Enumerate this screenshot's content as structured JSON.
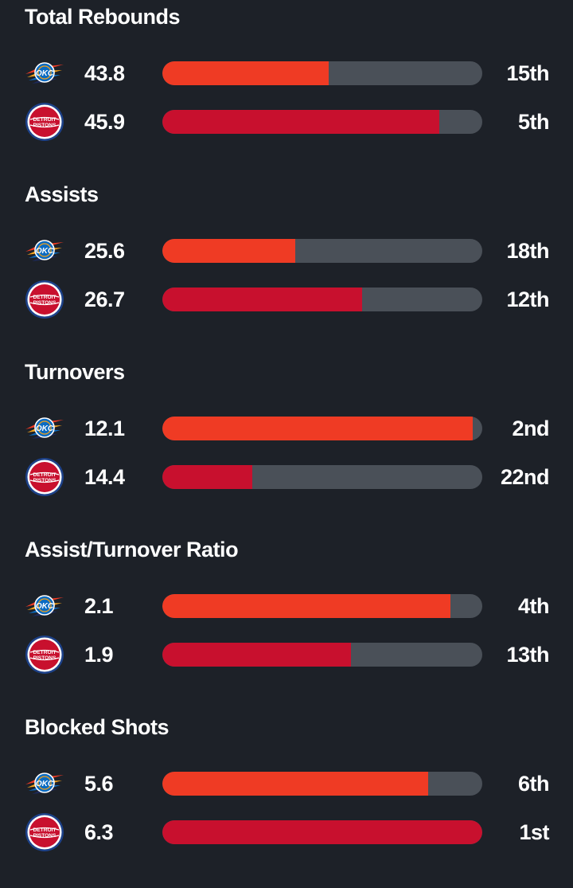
{
  "colors": {
    "background": "#1d2128",
    "track": "#4a5058",
    "okc_bar": "#ef3b24",
    "det_bar": "#c8102e"
  },
  "teams": {
    "okc": {
      "logo": "okc-thunder-logo",
      "logo_text": "OKC"
    },
    "det": {
      "logo": "detroit-pistons-logo",
      "logo_text": [
        "DETROIT",
        "PISTONS"
      ]
    }
  },
  "stats": [
    {
      "title": "Total Rebounds",
      "okc": {
        "value": "43.8",
        "rank": "15th",
        "fill": 0.52
      },
      "det": {
        "value": "45.9",
        "rank": "5th",
        "fill": 0.865
      }
    },
    {
      "title": "Assists",
      "okc": {
        "value": "25.6",
        "rank": "18th",
        "fill": 0.415
      },
      "det": {
        "value": "26.7",
        "rank": "12th",
        "fill": 0.625
      }
    },
    {
      "title": "Turnovers",
      "okc": {
        "value": "12.1",
        "rank": "2nd",
        "fill": 0.97
      },
      "det": {
        "value": "14.4",
        "rank": "22nd",
        "fill": 0.28
      }
    },
    {
      "title": "Assist/Turnover Ratio",
      "okc": {
        "value": "2.1",
        "rank": "4th",
        "fill": 0.9
      },
      "det": {
        "value": "1.9",
        "rank": "13th",
        "fill": 0.59
      }
    },
    {
      "title": "Blocked Shots",
      "okc": {
        "value": "5.6",
        "rank": "6th",
        "fill": 0.83
      },
      "det": {
        "value": "6.3",
        "rank": "1st",
        "fill": 1.0
      }
    }
  ]
}
